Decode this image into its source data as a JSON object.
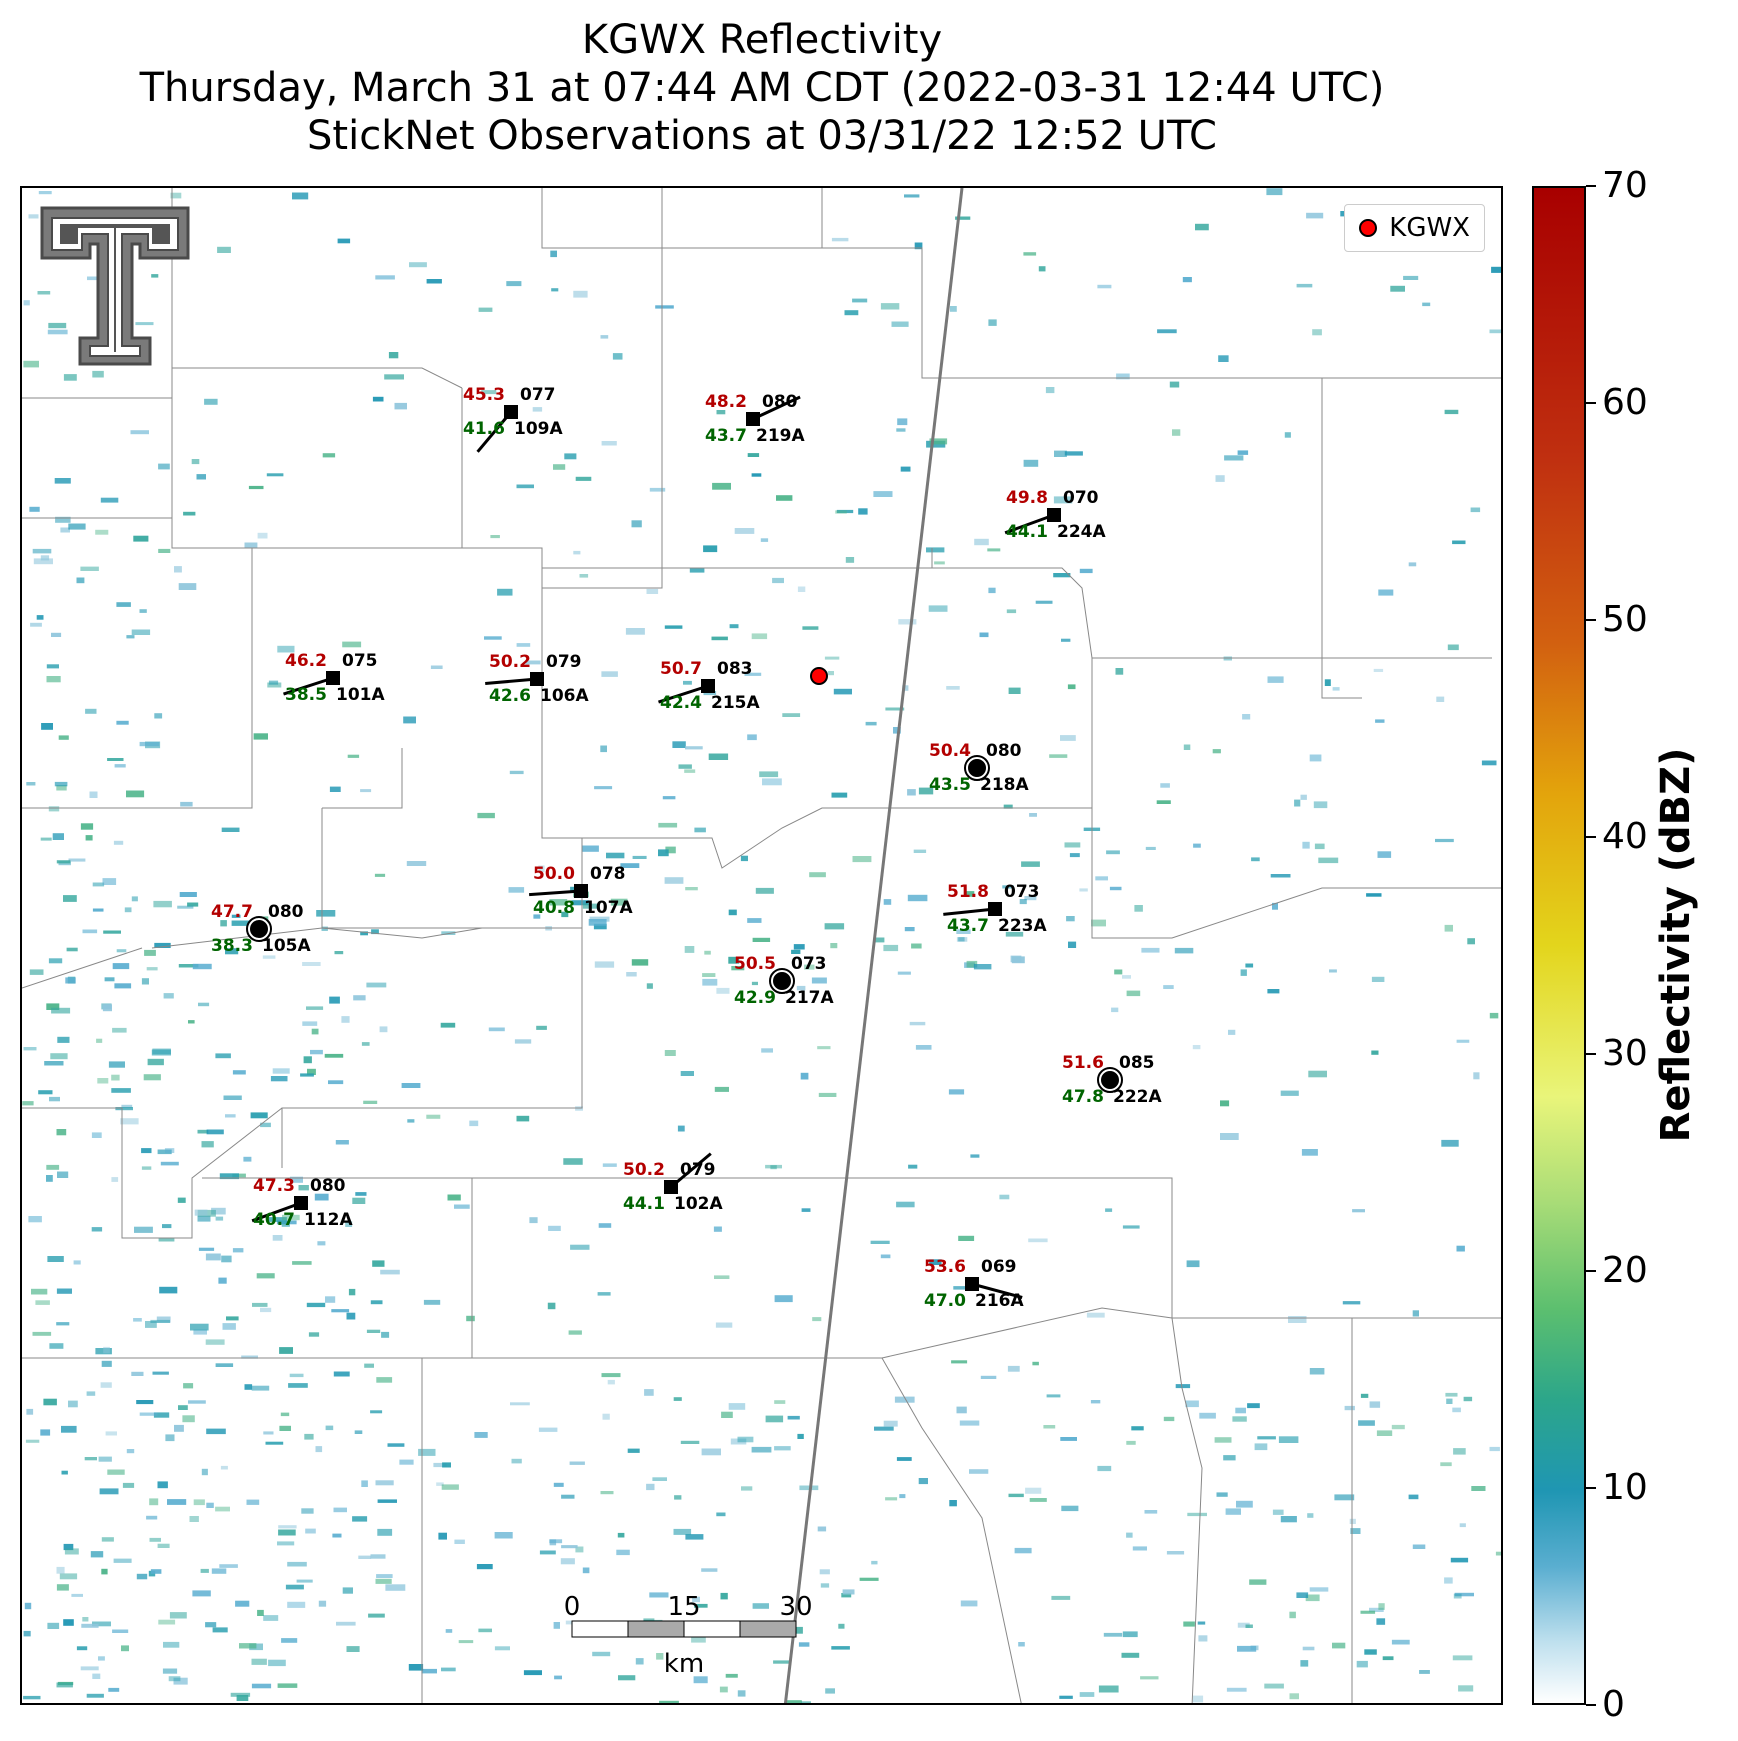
{
  "header": {
    "title": "KGWX Reflectivity",
    "subtitle": "Thursday, March 31 at 07:44 AM CDT (2022-03-31 12:44 UTC)",
    "subtitle2": "StickNet Observations at 03/31/22 12:52 UTC"
  },
  "legend": {
    "label": "KGWX"
  },
  "colorbar": {
    "label": "Reflectivity (dBZ)",
    "ticks": [
      "70",
      "60",
      "50",
      "40",
      "30",
      "20",
      "10",
      "0"
    ]
  },
  "scale_bar": {
    "ticks": [
      "0",
      "15",
      "30"
    ],
    "unit": "km"
  },
  "colors": {
    "temp": "#b30000",
    "dew": "#006400",
    "radar": "#ff0000"
  },
  "logo": {
    "name": "texas-tech-double-t-logo"
  },
  "stations": [
    {
      "id": "109A",
      "temp": "45.3",
      "dew": "41.6",
      "press": "077",
      "kind": "square"
    },
    {
      "id": "219A",
      "temp": "48.2",
      "dew": "43.7",
      "press": "080",
      "kind": "square"
    },
    {
      "id": "224A",
      "temp": "49.8",
      "dew": "44.1",
      "press": "070",
      "kind": "square"
    },
    {
      "id": "101A",
      "temp": "46.2",
      "dew": "38.5",
      "press": "075",
      "kind": "square"
    },
    {
      "id": "106A",
      "temp": "50.2",
      "dew": "42.6",
      "press": "079",
      "kind": "square"
    },
    {
      "id": "215A",
      "temp": "50.7",
      "dew": "42.4",
      "press": "083",
      "kind": "square"
    },
    {
      "id": "218A",
      "temp": "50.4",
      "dew": "43.5",
      "press": "080",
      "kind": "calm"
    },
    {
      "id": "107A",
      "temp": "50.0",
      "dew": "40.8",
      "press": "078",
      "kind": "square"
    },
    {
      "id": "223A",
      "temp": "51.8",
      "dew": "43.7",
      "press": "073",
      "kind": "square"
    },
    {
      "id": "105A",
      "temp": "47.7",
      "dew": "38.3",
      "press": "080",
      "kind": "calm"
    },
    {
      "id": "217A",
      "temp": "50.5",
      "dew": "42.9",
      "press": "073",
      "kind": "calm"
    },
    {
      "id": "222A",
      "temp": "51.6",
      "dew": "47.8",
      "press": "085",
      "kind": "calm"
    },
    {
      "id": "112A",
      "temp": "47.3",
      "dew": "40.7",
      "press": "080",
      "kind": "square"
    },
    {
      "id": "102A",
      "temp": "50.2",
      "dew": "44.1",
      "press": "079",
      "kind": "square"
    },
    {
      "id": "216A",
      "temp": "53.6",
      "dew": "47.0",
      "press": "069",
      "kind": "square"
    }
  ]
}
